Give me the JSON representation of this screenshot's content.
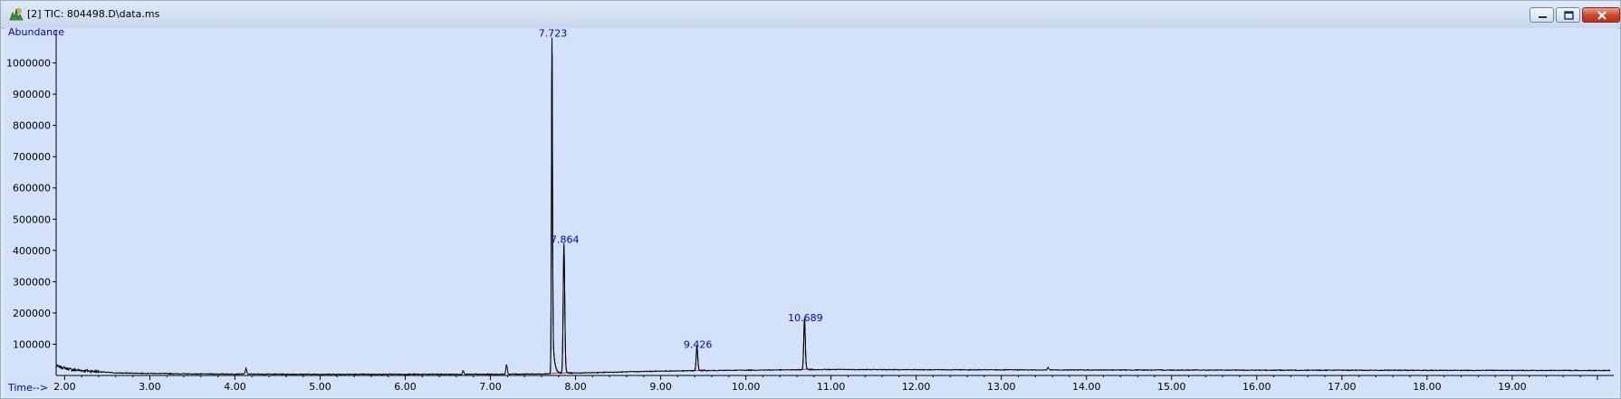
{
  "window": {
    "title": "[2] TIC: 804498.D\\data.ms"
  },
  "icons": {
    "app": "chromatogram-app-icon",
    "minimize": "minimize-icon",
    "restore": "restore-icon",
    "close": "close-icon"
  },
  "colors": {
    "plot_background": "#d3e1fb",
    "trace": "#000000",
    "label_blue": "#0000cc",
    "baseline_red": "#e03030"
  },
  "chart_data": {
    "type": "line",
    "title": "",
    "xlabel": "Time-->",
    "ylabel": "Abundance",
    "xlim": [
      1.9,
      20.15
    ],
    "ylim": [
      0,
      1100000
    ],
    "x_ticks": [
      "2.00",
      "3.00",
      "4.00",
      "5.00",
      "6.00",
      "7.00",
      "8.00",
      "9.00",
      "10.00",
      "11.00",
      "12.00",
      "13.00",
      "14.00",
      "15.00",
      "16.00",
      "17.00",
      "18.00",
      "19.00"
    ],
    "y_ticks": [
      "100000",
      "200000",
      "300000",
      "400000",
      "500000",
      "600000",
      "700000",
      "800000",
      "900000",
      "1000000"
    ],
    "grid": false,
    "peaks": [
      {
        "label": "7.723",
        "time": 7.723,
        "height": 1075000
      },
      {
        "label": "7.864",
        "time": 7.864,
        "height": 415000
      },
      {
        "label": "9.426",
        "time": 9.426,
        "height": 80000
      },
      {
        "label": "10.689",
        "time": 10.689,
        "height": 165000
      }
    ],
    "minor_peaks": [
      {
        "time": 4.13,
        "height": 18000
      },
      {
        "time": 6.68,
        "height": 12000
      },
      {
        "time": 7.19,
        "height": 30000
      },
      {
        "time": 13.55,
        "height": 8000
      }
    ],
    "baseline": [
      [
        1.9,
        30000
      ],
      [
        2.1,
        18000
      ],
      [
        2.6,
        8000
      ],
      [
        3.5,
        5000
      ],
      [
        5.0,
        4000
      ],
      [
        7.0,
        4000
      ],
      [
        7.6,
        5000
      ],
      [
        8.2,
        9000
      ],
      [
        9.0,
        14000
      ],
      [
        10.0,
        17000
      ],
      [
        11.0,
        19000
      ],
      [
        13.0,
        18000
      ],
      [
        16.0,
        17000
      ],
      [
        20.15,
        16000
      ]
    ]
  }
}
